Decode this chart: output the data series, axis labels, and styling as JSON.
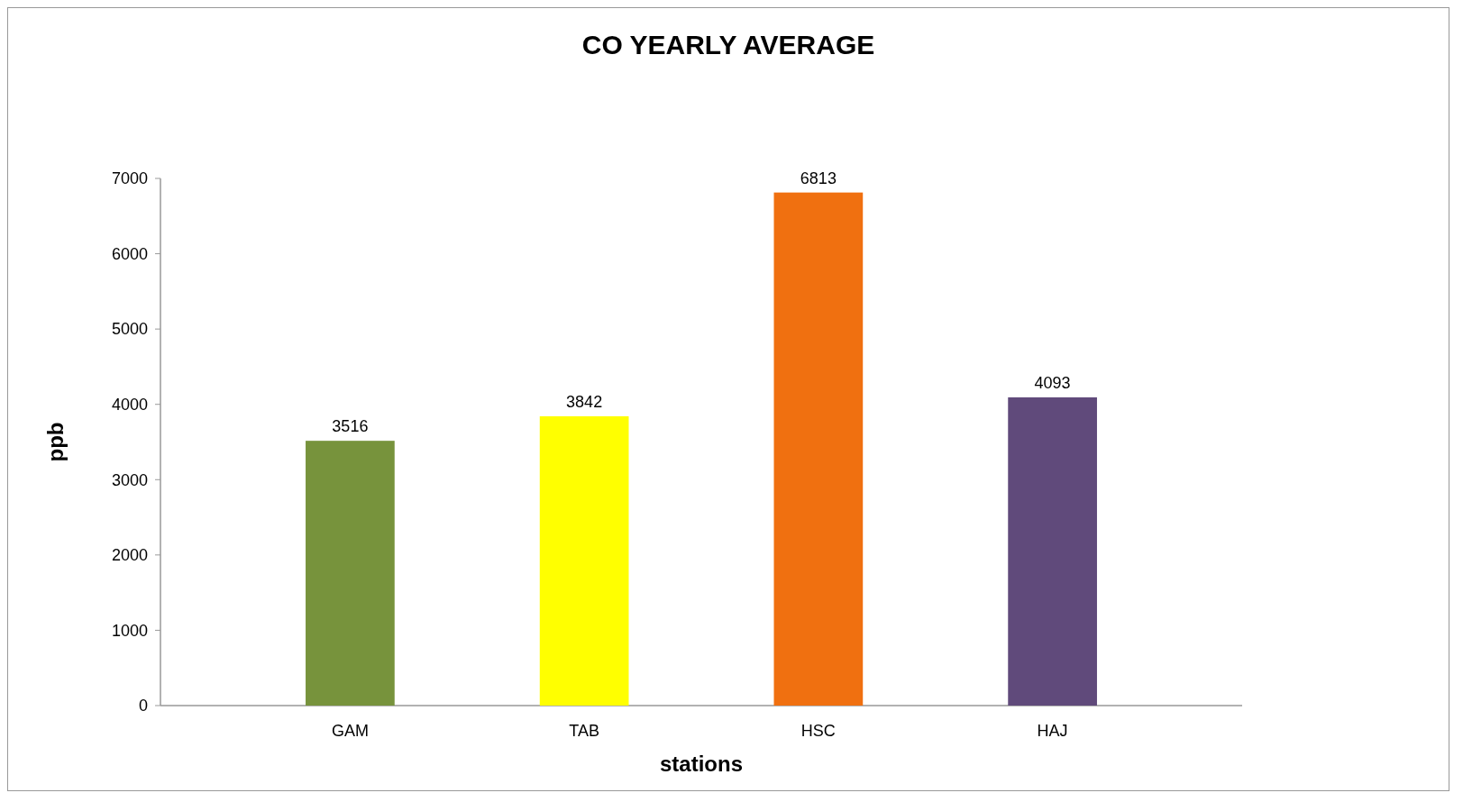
{
  "chart_data": {
    "type": "bar",
    "title": "CO YEARLY AVERAGE",
    "xlabel": "stations",
    "ylabel": "ppb",
    "categories": [
      "GAM",
      "TAB",
      "HSC",
      "HAJ"
    ],
    "values": [
      3516,
      3842,
      6813,
      4093
    ],
    "colors": [
      "#77933c",
      "#ffff00",
      "#f07010",
      "#604a7b"
    ],
    "ylim": [
      0,
      7000
    ],
    "yticks": [
      0,
      1000,
      2000,
      3000,
      4000,
      5000,
      6000,
      7000
    ],
    "data_labels": true
  }
}
